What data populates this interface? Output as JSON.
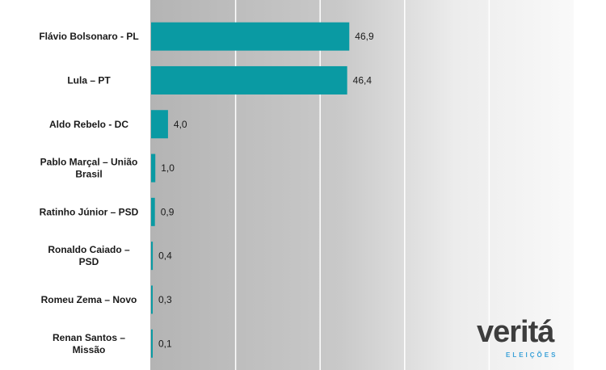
{
  "chart_data": {
    "type": "bar",
    "orientation": "horizontal",
    "categories": [
      "Flávio Bolsonaro - PL",
      "Lula – PT",
      "Aldo Rebelo - DC",
      "Pablo Marçal – União Brasil",
      "Ratinho Júnior – PSD",
      "Ronaldo Caiado – PSD",
      "Romeu Zema – Novo",
      "Renan Santos – Missão"
    ],
    "category_lines": [
      [
        "Flávio Bolsonaro - PL"
      ],
      [
        "Lula – PT"
      ],
      [
        "Aldo Rebelo - DC"
      ],
      [
        "Pablo Marçal – União",
        "Brasil"
      ],
      [
        "Ratinho Júnior – PSD"
      ],
      [
        "Ronaldo Caiado –",
        "PSD"
      ],
      [
        "Romeu Zema – Novo"
      ],
      [
        "Renan Santos –",
        "Missão"
      ]
    ],
    "values": [
      46.9,
      46.4,
      4.0,
      1.0,
      0.9,
      0.4,
      0.3,
      0.1
    ],
    "value_labels": [
      "46,9",
      "46,4",
      "4,0",
      "1,0",
      "0,9",
      "0,4",
      "0,3",
      "0,1"
    ],
    "xlim": [
      0,
      100
    ],
    "grid": true,
    "bar_color": "#0a9aa3",
    "title": "",
    "xlabel": "",
    "ylabel": ""
  },
  "logo": {
    "text": "veritá",
    "subtext": "ELEIÇÕES",
    "text_color": "#3d3d3d",
    "accent_color": "#3aa1d8"
  }
}
